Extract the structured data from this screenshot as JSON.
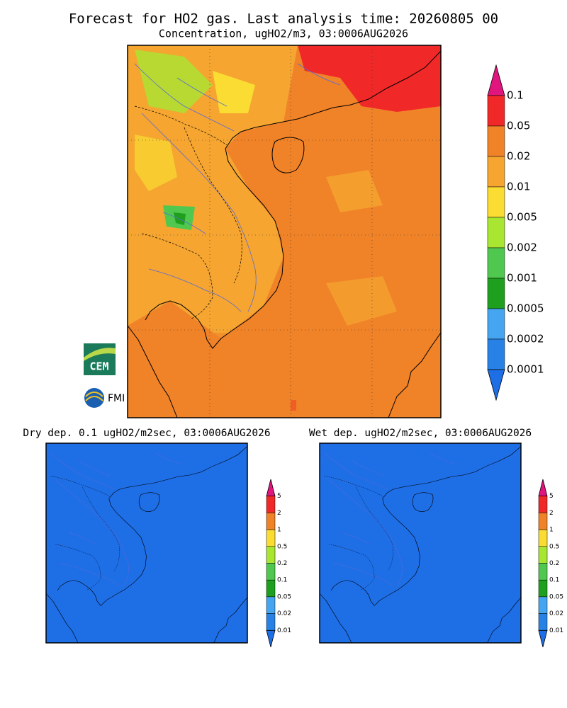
{
  "header": {
    "title": "Forecast for HO2 gas. Last analysis time: 20260805 00"
  },
  "main_map": {
    "subtitle": "Concentration, ugHO2/m3, 03:0006AUG2026",
    "colorbar": {
      "labels": [
        "0.1",
        "0.05",
        "0.02",
        "0.01",
        "0.005",
        "0.002",
        "0.001",
        "0.0005",
        "0.0002",
        "0.0001"
      ],
      "colors": [
        "#e0167e",
        "#f02828",
        "#f08228",
        "#f5a530",
        "#fadc32",
        "#a8e632",
        "#50c850",
        "#1ea01e",
        "#46a5f0",
        "#2882e6",
        "#1e6ee6"
      ]
    }
  },
  "dry_map": {
    "title": "Dry dep. 0.1 ugHO2/m2sec, 03:0006AUG2026",
    "colorbar": {
      "labels": [
        "5",
        "2",
        "1",
        "0.5",
        "0.2",
        "0.1",
        "0.05",
        "0.02",
        "0.01"
      ],
      "colors": [
        "#e0167e",
        "#f02828",
        "#f08228",
        "#fadc32",
        "#a8e632",
        "#50c850",
        "#1ea01e",
        "#46a5f0",
        "#2882e6",
        "#1e6ee6"
      ]
    }
  },
  "wet_map": {
    "title": "Wet dep. ugHO2/m2sec, 03:0006AUG2026",
    "colorbar": {
      "labels": [
        "5",
        "2",
        "1",
        "0.5",
        "0.2",
        "0.1",
        "0.05",
        "0.02",
        "0.01"
      ],
      "colors": [
        "#e0167e",
        "#f02828",
        "#f08228",
        "#fadc32",
        "#a8e632",
        "#50c850",
        "#1ea01e",
        "#46a5f0",
        "#2882e6",
        "#1e6ee6"
      ]
    }
  },
  "logos": {
    "cem": "CEM",
    "fmi": "FMI"
  }
}
